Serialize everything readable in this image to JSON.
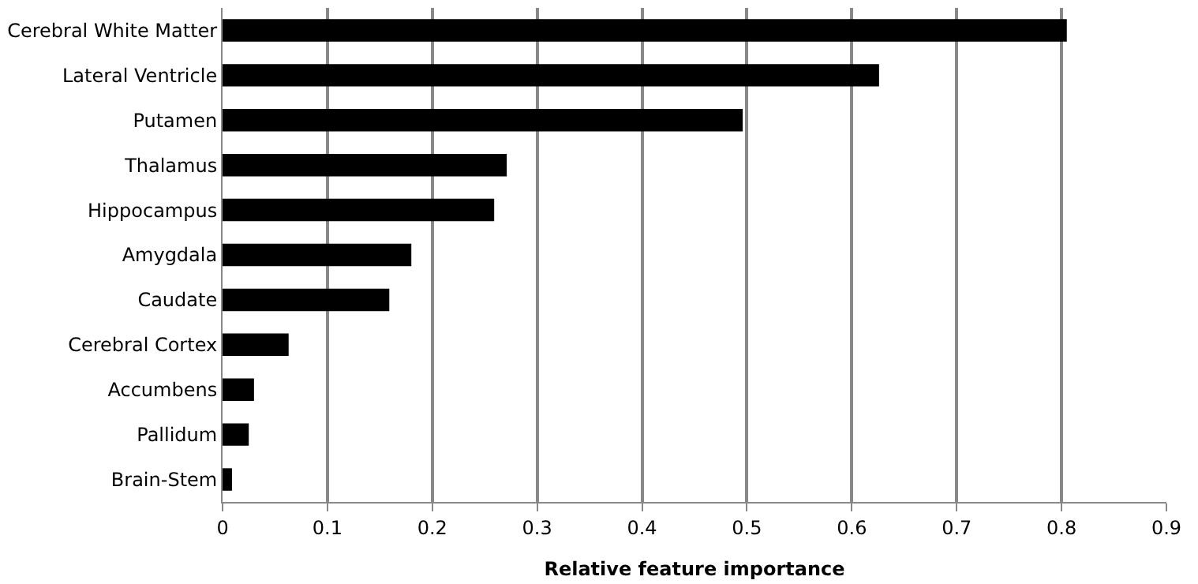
{
  "chart_data": {
    "type": "bar",
    "orientation": "horizontal",
    "xlabel": "Relative feature importance",
    "categories": [
      "Cerebral White Matter",
      "Lateral Ventricle",
      "Putamen",
      "Thalamus",
      "Hippocampus",
      "Amygdala",
      "Caudate",
      "Cerebral Cortex",
      "Accumbens",
      "Pallidum",
      "Brain-Stem"
    ],
    "values": [
      0.805,
      0.626,
      0.496,
      0.271,
      0.259,
      0.18,
      0.159,
      0.063,
      0.03,
      0.025,
      0.009
    ],
    "color": "#000000",
    "xlim": [
      0,
      0.9
    ],
    "xticks": [
      0,
      0.1,
      0.2,
      0.3,
      0.4,
      0.5,
      0.6,
      0.7,
      0.8,
      0.9
    ],
    "grid": "x",
    "legend": false
  }
}
